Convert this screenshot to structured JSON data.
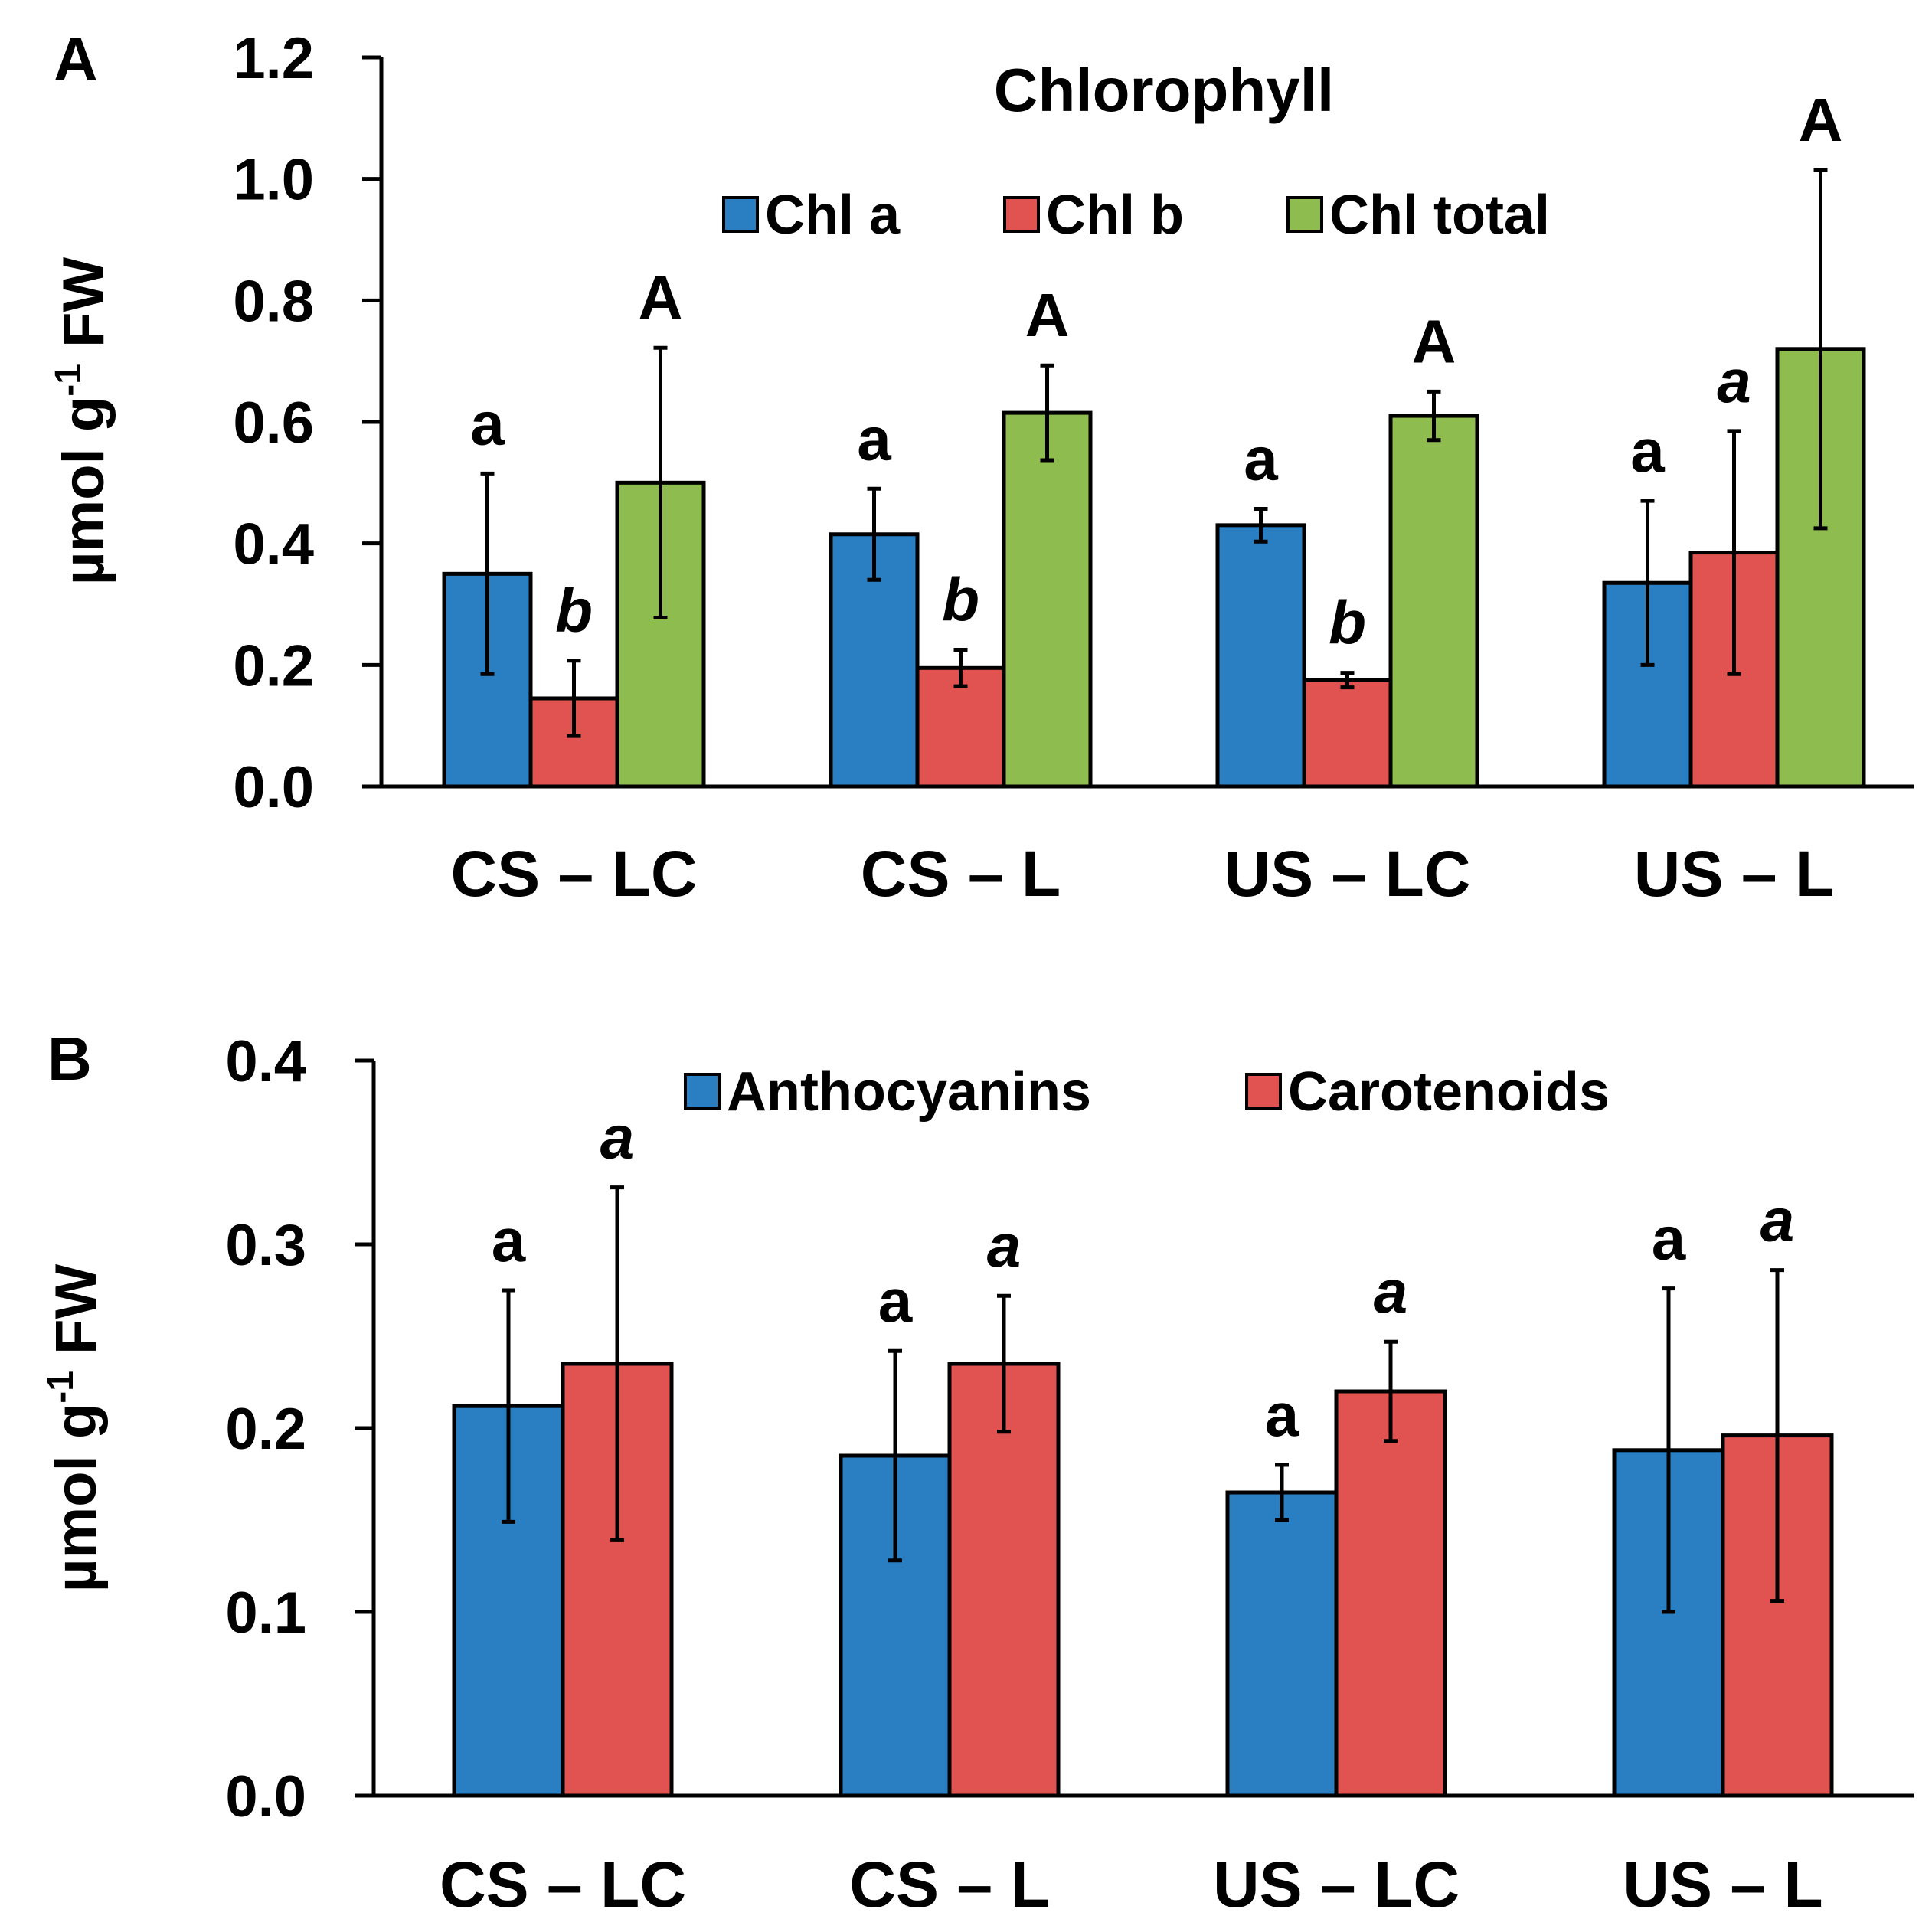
{
  "chart_data": [
    {
      "panel": "A",
      "type": "bar",
      "title": "Chlorophyll",
      "ylabel": "µmol g",
      "ylabel_sup": "-1",
      "ylabel_suffix": " FW",
      "xlabel": "",
      "ylim": [
        0,
        1.2
      ],
      "yticks": [
        "0.0",
        "0.2",
        "0.4",
        "0.6",
        "0.8",
        "1.0",
        "1.2"
      ],
      "categories": [
        "CS – LC",
        "CS – L",
        "US – LC",
        "US – L"
      ],
      "legend_position": "top-center",
      "series": [
        {
          "name": "Chl a",
          "color": "#2a7fc2",
          "values": [
            0.35,
            0.415,
            0.43,
            0.335
          ],
          "errors": [
            0.165,
            0.075,
            0.027,
            0.135
          ],
          "letters": [
            "a",
            "a",
            "a",
            "a"
          ],
          "letter_style": "normal"
        },
        {
          "name": "Chl b",
          "color": "#e05350",
          "values": [
            0.145,
            0.195,
            0.175,
            0.385
          ],
          "errors": [
            0.062,
            0.03,
            0.012,
            0.2
          ],
          "letters": [
            "b",
            "b",
            "b",
            "a"
          ],
          "letter_style": "italic"
        },
        {
          "name": "Chl total",
          "color": "#8fbc4f",
          "values": [
            0.5,
            0.615,
            0.61,
            0.72
          ],
          "errors": [
            0.222,
            0.078,
            0.04,
            0.295
          ],
          "letters": [
            "A",
            "A",
            "A",
            "A"
          ],
          "letter_style": "normal"
        }
      ]
    },
    {
      "panel": "B",
      "type": "bar",
      "title": "",
      "ylabel": "µmol g",
      "ylabel_sup": "-1",
      "ylabel_suffix": " FW",
      "xlabel": "",
      "ylim": [
        0,
        0.4
      ],
      "yticks": [
        "0.0",
        "0.1",
        "0.2",
        "0.3",
        "0.4"
      ],
      "categories": [
        "CS – LC",
        "CS – L",
        "US – LC",
        "US – L"
      ],
      "legend_position": "top-center",
      "series": [
        {
          "name": "Anthocyanins",
          "color": "#2a7fc2",
          "values": [
            0.212,
            0.185,
            0.165,
            0.188
          ],
          "errors": [
            0.063,
            0.057,
            0.015,
            0.088
          ],
          "letters": [
            "a",
            "a",
            "a",
            "a"
          ],
          "letter_style": "normal"
        },
        {
          "name": "Carotenoids",
          "color": "#e05350",
          "values": [
            0.235,
            0.235,
            0.22,
            0.196
          ],
          "errors": [
            0.096,
            0.037,
            0.027,
            0.09
          ],
          "letters": [
            "a",
            "a",
            "a",
            "a"
          ],
          "letter_style": "italic"
        }
      ]
    }
  ]
}
